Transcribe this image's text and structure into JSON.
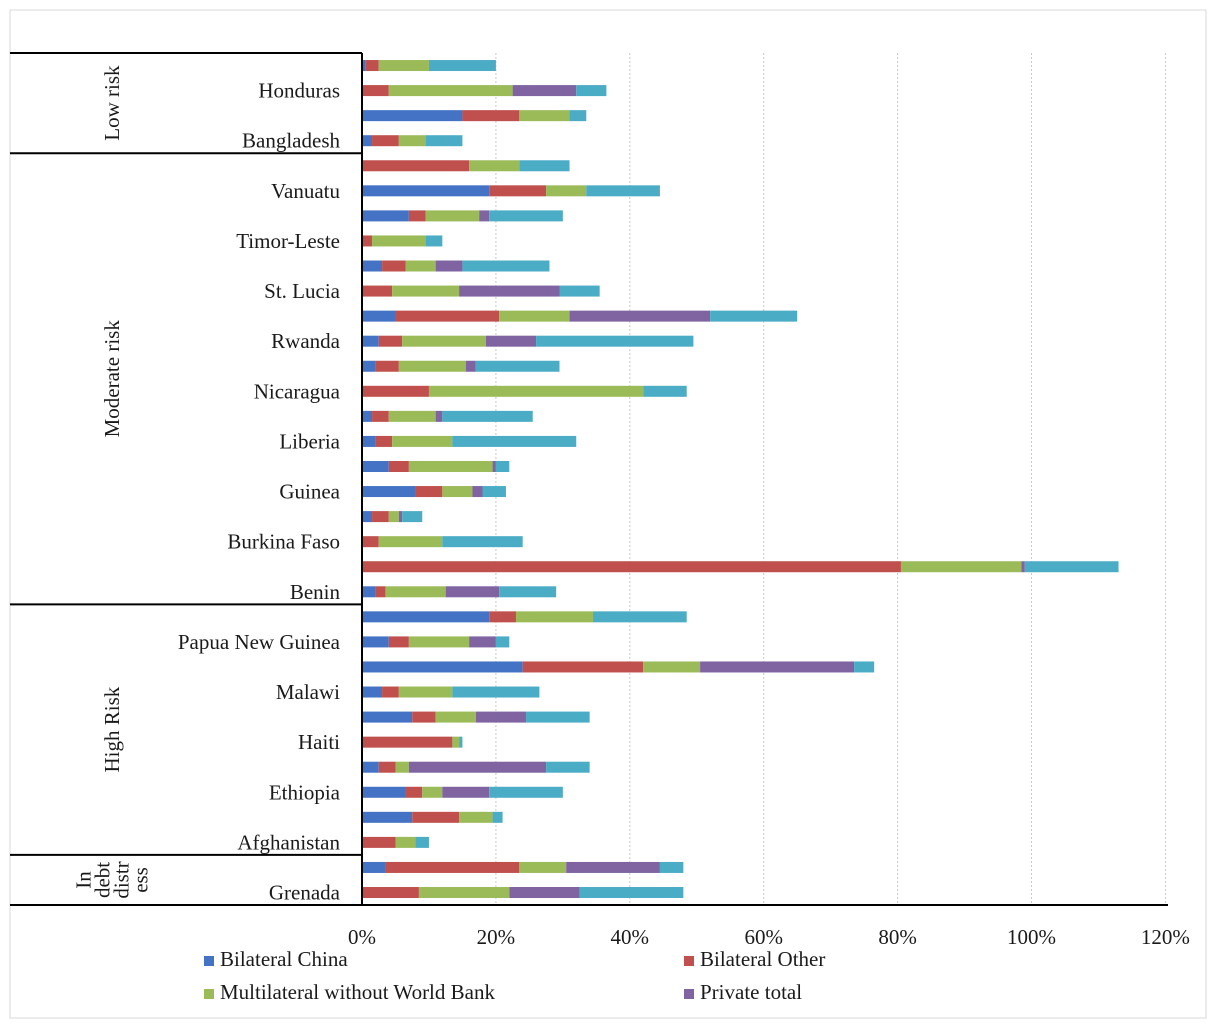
{
  "chart_data": {
    "type": "bar",
    "orientation": "horizontal",
    "stacked": true,
    "xlim": [
      0,
      120
    ],
    "xticks": [
      "0%",
      "20%",
      "40%",
      "60%",
      "80%",
      "100%",
      "120%"
    ],
    "grid": "vertical dashed",
    "legend_position": "bottom",
    "groups": [
      {
        "name": "Low risk",
        "lines": [
          "Low risk"
        ],
        "bars": 4
      },
      {
        "name": "Moderate risk",
        "lines": [
          "Moderate risk"
        ],
        "bars": 18
      },
      {
        "name": "High Risk",
        "lines": [
          "High Risk"
        ],
        "bars": 10
      },
      {
        "name": "In debt distress",
        "lines": [
          "In",
          "debt",
          "distr",
          "ess"
        ],
        "bars": 2
      }
    ],
    "categories": [
      "",
      "Honduras",
      "",
      "Bangladesh",
      "",
      "Vanuatu",
      "",
      "Timor-Leste",
      "",
      "St. Lucia",
      "",
      "Rwanda",
      "",
      "Nicaragua",
      "",
      "Liberia",
      "",
      "Guinea",
      "",
      "Burkina Faso",
      "",
      "Benin",
      "",
      "Papua New Guinea",
      "",
      "Malawi",
      "",
      "Haiti",
      "",
      "Ethiopia",
      "",
      "Afghanistan",
      "",
      "Grenada"
    ],
    "series": [
      {
        "name": "Bilateral China",
        "color": "#4472c4",
        "values": [
          0.5,
          0,
          15,
          1.5,
          0,
          19,
          7,
          0,
          3,
          0,
          5,
          2.5,
          2,
          0,
          1.5,
          2,
          4,
          8,
          1.5,
          0,
          0,
          2,
          19,
          4,
          24,
          3,
          7.5,
          0,
          2.5,
          6.5,
          7.5,
          0,
          3.5,
          0
        ]
      },
      {
        "name": "Bilateral Other",
        "color": "#c0504d",
        "values": [
          2,
          4,
          8.5,
          4,
          16,
          8.5,
          2.5,
          1.5,
          3.5,
          4.5,
          15.5,
          3.5,
          3.5,
          10,
          2.5,
          2.5,
          3,
          4,
          2.5,
          2.5,
          80.5,
          1.5,
          4,
          3,
          18,
          2.5,
          3.5,
          13.5,
          2.5,
          2.5,
          7,
          5,
          20,
          8.5
        ]
      },
      {
        "name": "Multilateral without World Bank",
        "color": "#9bbb59",
        "values": [
          7.5,
          18.5,
          7.5,
          4,
          7.5,
          6,
          8,
          8,
          4.5,
          10,
          10.5,
          12.5,
          10,
          32,
          7,
          9,
          12.5,
          4.5,
          1.5,
          9.5,
          18,
          9,
          11.5,
          9,
          8.5,
          8,
          6,
          1,
          2,
          3,
          5,
          3,
          7,
          13.5
        ]
      },
      {
        "name": "Private total",
        "color": "#8064a2",
        "values": [
          0,
          9.5,
          0,
          0,
          0,
          0,
          1.5,
          0,
          4,
          15,
          21,
          7.5,
          1.5,
          0,
          1,
          0,
          0.5,
          1.5,
          0.5,
          0,
          0.5,
          8,
          0,
          4,
          23,
          0,
          7.5,
          0,
          20.5,
          7,
          0,
          0,
          14,
          10.5
        ]
      },
      {
        "name": "",
        "color": "#4bacc6",
        "values": [
          10,
          4.5,
          2.5,
          5.5,
          7.5,
          11,
          11,
          2.5,
          13,
          6,
          13,
          23.5,
          12.5,
          6.5,
          13.5,
          18.5,
          2,
          3.5,
          3,
          12,
          14,
          8.5,
          14,
          2,
          3,
          13,
          9.5,
          0.5,
          6.5,
          11,
          1.5,
          2,
          3.5,
          15.5
        ]
      }
    ],
    "legend": [
      "Bilateral China",
      "Bilateral Other",
      "Multilateral without World Bank",
      "Private total"
    ]
  }
}
